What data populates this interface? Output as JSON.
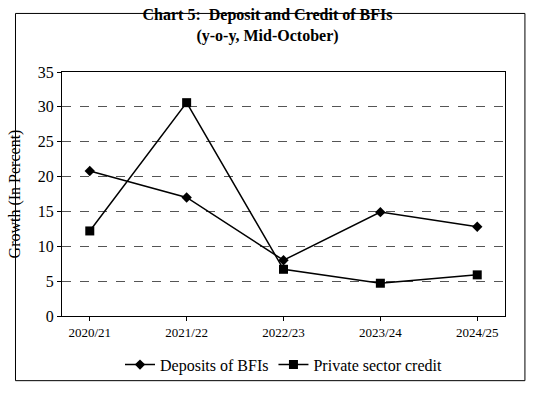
{
  "chart_data": {
    "type": "line",
    "title": "Chart 5:  Deposit and Credit of BFIs",
    "subtitle": "(y-o-y, Mid-October)",
    "y_label": "Growth (In Percent)",
    "categories": [
      "2020/21",
      "2021/22",
      "2022/23",
      "2023/24",
      "2024/25"
    ],
    "series": [
      {
        "name": "Deposits of BFIs",
        "color": "#000000",
        "marker": "diamond",
        "line_style": "solid",
        "values": [
          20.8,
          17.0,
          8.0,
          14.9,
          12.8
        ]
      },
      {
        "name": "Private sector credit",
        "color": "#000000",
        "marker": "square",
        "line_style": "solid",
        "values": [
          12.2,
          30.6,
          6.7,
          4.7,
          5.9
        ]
      }
    ],
    "ylim": [
      0,
      35
    ],
    "yticks": [
      0,
      5,
      10,
      15,
      20,
      25,
      30,
      35
    ],
    "grid": true,
    "legend": "bottom"
  }
}
